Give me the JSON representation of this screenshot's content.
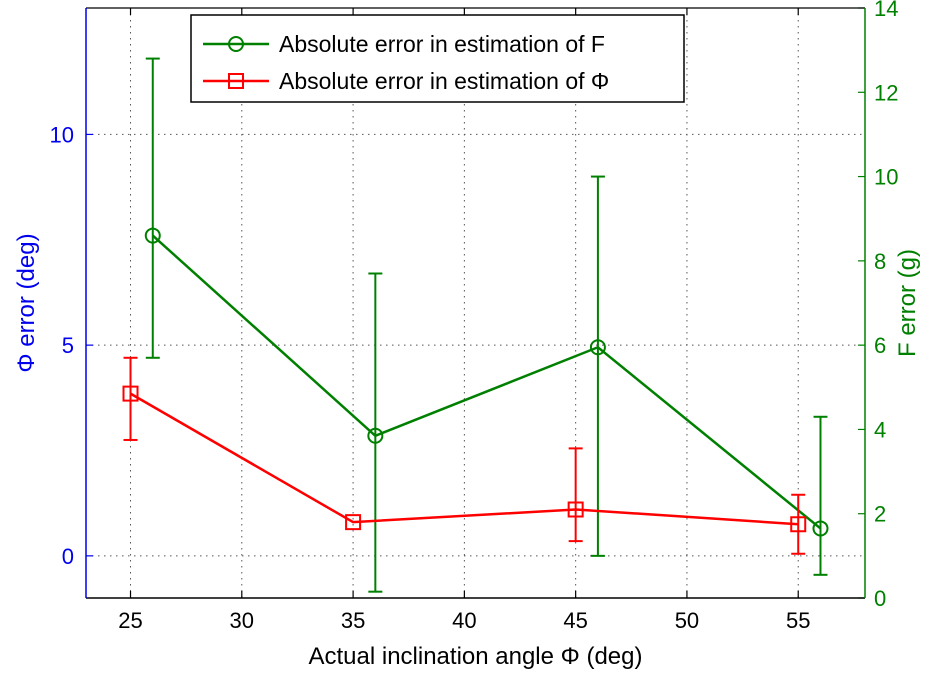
{
  "colors": {
    "left_axis": "#0000ee",
    "right_axis": "#008000",
    "F_series": "#008000",
    "phi_series": "#ff0000",
    "grid": "#555555",
    "bottom_axis": "#000000"
  },
  "chart_data": {
    "type": "line",
    "xlabel": "Actual inclination angle Φ (deg)",
    "ylabel_left": "Φ error (deg)",
    "ylabel_right": "F error (g)",
    "xlim": [
      23,
      58
    ],
    "ylim_left": [
      -1,
      13
    ],
    "ylim_right": [
      0,
      14
    ],
    "xticks": [
      25,
      30,
      35,
      40,
      45,
      50,
      55
    ],
    "yticks_left": [
      0,
      5,
      10
    ],
    "yticks_right": [
      0,
      2,
      4,
      6,
      8,
      10,
      12,
      14
    ],
    "grid": true,
    "legend_position": "top-center",
    "series": [
      {
        "name": "Absolute error in estimation of F",
        "axis": "right",
        "marker": "circle",
        "color": "#008000",
        "x": [
          26,
          36,
          46,
          56
        ],
        "y": [
          8.6,
          3.85,
          5.95,
          1.65
        ],
        "err_low": [
          5.7,
          0.15,
          1.0,
          0.55
        ],
        "err_high": [
          12.8,
          7.7,
          10.0,
          4.3
        ]
      },
      {
        "name": "Absolute error in estimation of Φ",
        "axis": "left",
        "marker": "square",
        "color": "#ff0000",
        "x": [
          25,
          35,
          45,
          55
        ],
        "y": [
          3.85,
          0.8,
          1.1,
          0.75
        ],
        "err_low": [
          2.75,
          0.8,
          0.35,
          0.05
        ],
        "err_high": [
          4.7,
          0.8,
          2.55,
          1.45
        ]
      }
    ]
  }
}
